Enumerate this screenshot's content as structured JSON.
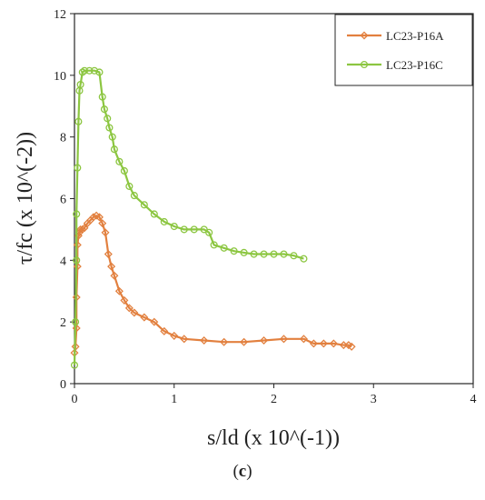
{
  "chart_data": {
    "type": "line",
    "xlabel": "s/ld (x 10^(-1))",
    "ylabel": "τ/fc (x 10^(-2))",
    "xlim": [
      0,
      4
    ],
    "ylim": [
      0,
      12
    ],
    "xticks": [
      "0",
      "1",
      "2",
      "3",
      "4"
    ],
    "yticks": [
      "0",
      "2",
      "4",
      "6",
      "8",
      "10",
      "12"
    ],
    "legend_position": "top-right",
    "panel_label": "(c)",
    "panel_label_bold": "c",
    "series": [
      {
        "name": "LC23-P16A",
        "color": "#E2803F",
        "marker": "diamond",
        "x": [
          0.0,
          0.01,
          0.02,
          0.02,
          0.03,
          0.03,
          0.04,
          0.05,
          0.06,
          0.08,
          0.1,
          0.13,
          0.16,
          0.19,
          0.22,
          0.25,
          0.28,
          0.31,
          0.34,
          0.37,
          0.4,
          0.45,
          0.5,
          0.55,
          0.6,
          0.7,
          0.8,
          0.9,
          1.0,
          1.1,
          1.3,
          1.5,
          1.7,
          1.9,
          2.1,
          2.3,
          2.4,
          2.5,
          2.6,
          2.7,
          2.75,
          2.78
        ],
        "y": [
          1.0,
          1.2,
          1.8,
          2.8,
          3.8,
          4.5,
          4.8,
          4.9,
          5.0,
          5.0,
          5.05,
          5.2,
          5.3,
          5.4,
          5.45,
          5.4,
          5.2,
          4.9,
          4.2,
          3.8,
          3.5,
          3.0,
          2.7,
          2.45,
          2.3,
          2.15,
          2.0,
          1.7,
          1.55,
          1.45,
          1.4,
          1.35,
          1.35,
          1.4,
          1.45,
          1.45,
          1.3,
          1.3,
          1.3,
          1.25,
          1.25,
          1.2
        ]
      },
      {
        "name": "LC23-P16C",
        "color": "#8CC641",
        "marker": "circle",
        "x": [
          0.0,
          0.01,
          0.02,
          0.02,
          0.03,
          0.04,
          0.05,
          0.06,
          0.08,
          0.1,
          0.15,
          0.2,
          0.25,
          0.28,
          0.3,
          0.33,
          0.35,
          0.38,
          0.4,
          0.45,
          0.5,
          0.55,
          0.6,
          0.7,
          0.8,
          0.9,
          1.0,
          1.1,
          1.2,
          1.3,
          1.35,
          1.4,
          1.5,
          1.6,
          1.7,
          1.8,
          1.9,
          2.0,
          2.1,
          2.2,
          2.3
        ],
        "y": [
          0.6,
          2.0,
          4.0,
          5.5,
          7.0,
          8.5,
          9.5,
          9.7,
          10.1,
          10.15,
          10.15,
          10.15,
          10.1,
          9.3,
          8.9,
          8.6,
          8.3,
          8.0,
          7.6,
          7.2,
          6.9,
          6.4,
          6.1,
          5.8,
          5.5,
          5.25,
          5.1,
          5.0,
          5.0,
          5.0,
          4.9,
          4.5,
          4.4,
          4.3,
          4.25,
          4.2,
          4.2,
          4.2,
          4.2,
          4.15,
          4.05
        ]
      }
    ]
  }
}
